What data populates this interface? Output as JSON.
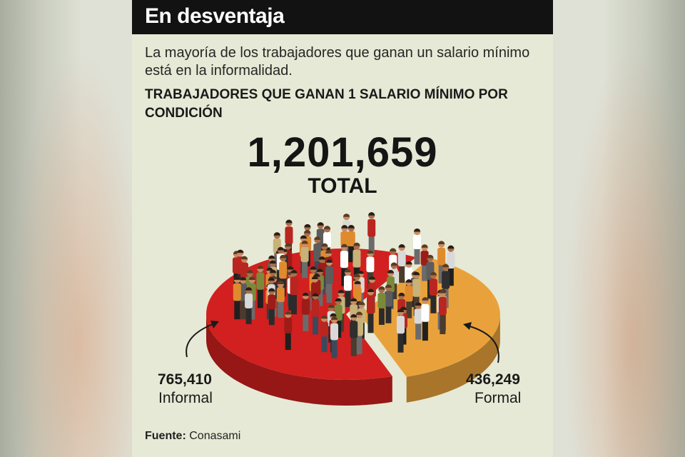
{
  "header": {
    "title": "En desventaja"
  },
  "subtitle": "La mayoría de los trabajadores que ganan un salario mínimo está en la informalidad.",
  "chart_data": {
    "type": "pie",
    "title": "TRABAJADORES QUE GANAN 1 SALARIO MÍNIMO POR CONDICIÓN",
    "total": {
      "value": "1,201,659",
      "label": "TOTAL"
    },
    "slices": [
      {
        "name": "Informal",
        "value": 765410,
        "value_label": "765,410",
        "color": "#d1201f"
      },
      {
        "name": "Formal",
        "value": 436249,
        "value_label": "436,249",
        "color": "#e9a23b"
      }
    ]
  },
  "source": {
    "label": "Fuente:",
    "name": "Conasami"
  }
}
